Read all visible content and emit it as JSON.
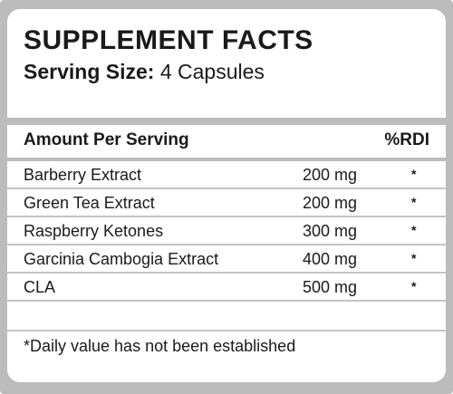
{
  "label": {
    "title": "SUPPLEMENT FACTS",
    "serving_size_label": "Serving Size:",
    "serving_size_value": "4 Capsules",
    "header_left": "Amount Per Serving",
    "header_right": "%RDI",
    "ingredients": [
      {
        "name": "Barberry Extract",
        "amount": "200 mg",
        "rdi": "*"
      },
      {
        "name": "Green Tea Extract",
        "amount": "200 mg",
        "rdi": "*"
      },
      {
        "name": "Raspberry Ketones",
        "amount": "300 mg",
        "rdi": "*"
      },
      {
        "name": "Garcinia Cambogia Extract",
        "amount": "400 mg",
        "rdi": "*"
      },
      {
        "name": "CLA",
        "amount": "500 mg",
        "rdi": "*"
      }
    ],
    "footnote": "*Daily value has not been established"
  },
  "colors": {
    "frame": "#bcbcbc",
    "text": "#1a1a1a"
  }
}
